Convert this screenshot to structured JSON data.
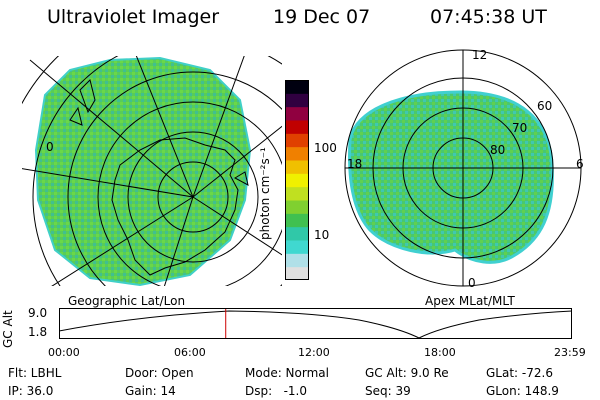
{
  "header": {
    "title": "Ultraviolet Imager",
    "date": "19 Dec 07",
    "time": "07:45:38 UT"
  },
  "left_panel": {
    "caption": "Geographic Lat/Lon",
    "lat_label": "0"
  },
  "right_panel": {
    "caption": "Apex MLat/MLT",
    "mlt_labels": {
      "top": "12",
      "left": "18",
      "right": "6",
      "bottom": "0"
    },
    "mlat_labels": [
      "60",
      "70",
      "80"
    ]
  },
  "colorbar": {
    "unit_label": "photon cm⁻²s⁻¹",
    "tick_100": "100",
    "tick_10": "10",
    "colors": [
      "#e0e0e0",
      "#b0e0e8",
      "#40d8d0",
      "#30c8a8",
      "#40c050",
      "#80d030",
      "#c0e020",
      "#f0f000",
      "#f0c000",
      "#f08000",
      "#e04000",
      "#c00000",
      "#900040",
      "#300040",
      "#000010"
    ]
  },
  "timeline": {
    "ylabel": "GC Alt",
    "y_ticks": [
      "9.0",
      "1.8"
    ],
    "x_ticks": [
      "00:00",
      "06:00",
      "12:00",
      "18:00",
      "23:59"
    ],
    "current_time_fraction": 0.325
  },
  "info": {
    "flt": "Flt: LBHL",
    "door": "Door: Open",
    "mode": "Mode: Normal",
    "gc_alt": "GC Alt: 9.0 Re",
    "glat": "GLat: -72.6",
    "ip": "IP: 36.0",
    "gain": "Gain: 14",
    "dsp": "Dsp:   -1.0",
    "seq": "Seq: 39",
    "glon": "GLon: 148.9"
  }
}
